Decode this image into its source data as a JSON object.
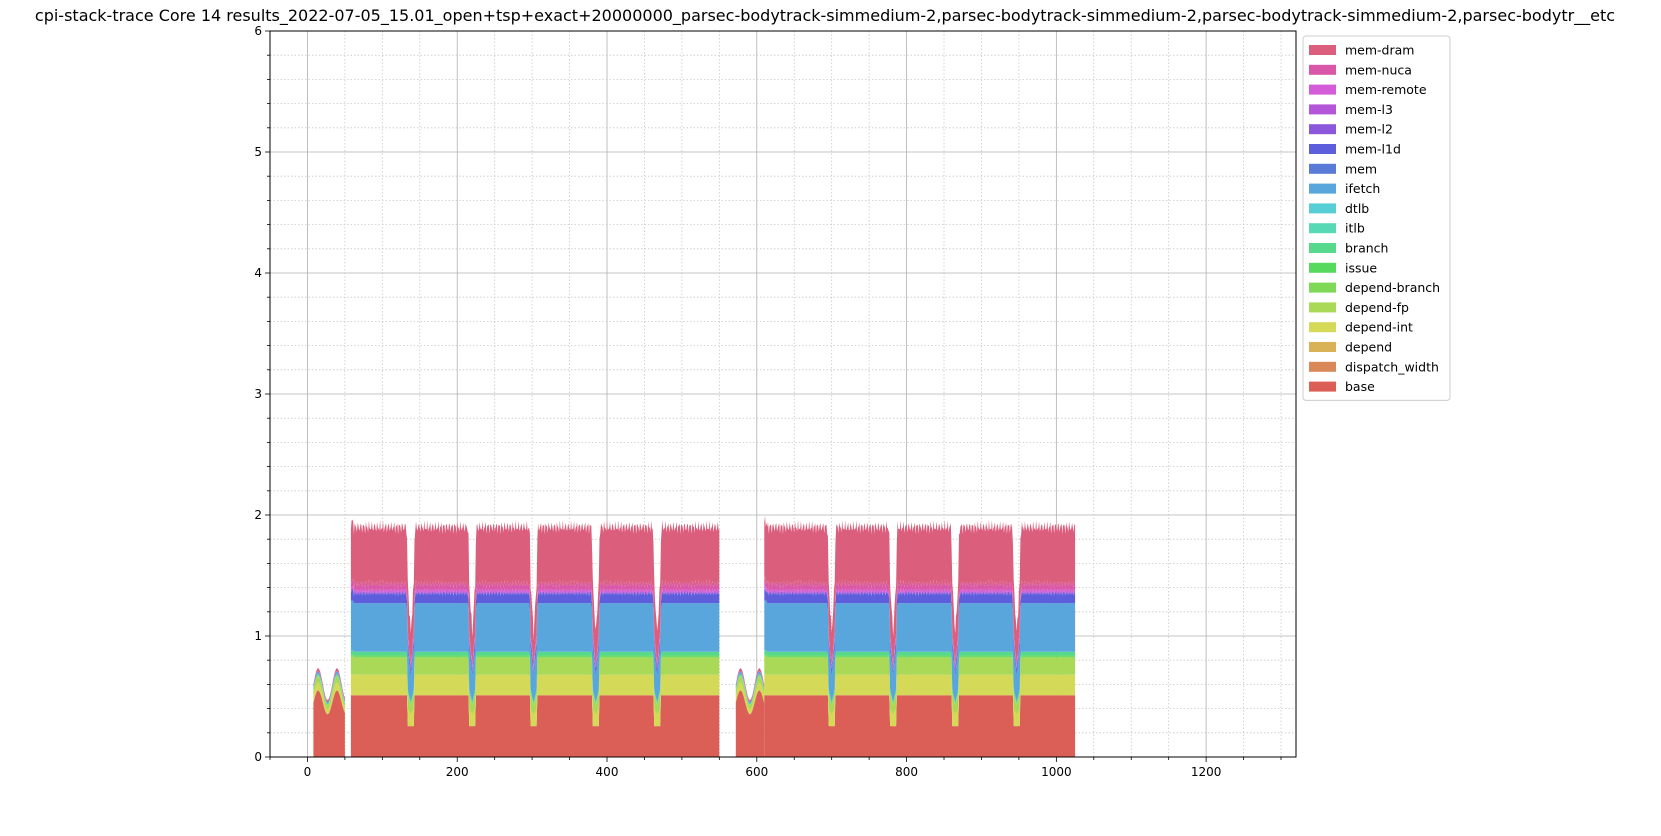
{
  "chart_data": {
    "type": "area",
    "title": "cpi-stack-trace Core 14 results_2022-07-05_15.01_open+tsp+exact+20000000_parsec-bodytrack-simmedium-2,parsec-bodytrack-simmedium-2,parsec-bodytrack-simmedium-2,parsec-bodytr__etc",
    "xlabel": "",
    "ylabel": "",
    "xlim": [
      -50,
      1320
    ],
    "ylim": [
      0,
      6
    ],
    "x_ticks": [
      0,
      200,
      400,
      600,
      800,
      1000,
      1200
    ],
    "y_ticks": [
      0,
      1,
      2,
      3,
      4,
      5,
      6
    ],
    "grid": true,
    "minor_grid": true,
    "legend_position": "upper-right-outside",
    "segments": [
      {
        "start": 8,
        "end": 50,
        "kind": "startup"
      },
      {
        "start": 58,
        "end": 550,
        "kind": "steady"
      },
      {
        "start": 572,
        "end": 610,
        "kind": "startup"
      },
      {
        "start": 610,
        "end": 1025,
        "kind": "steady"
      }
    ],
    "dips": [
      138,
      220,
      302,
      385,
      467,
      700,
      782,
      865,
      947
    ],
    "series": [
      {
        "name": "mem-dram",
        "color": "#db5f7c",
        "steady": 0.47
      },
      {
        "name": "mem-nuca",
        "color": "#d957a8",
        "steady": 0.05
      },
      {
        "name": "mem-remote",
        "color": "#d55cd8",
        "steady": 0.02
      },
      {
        "name": "mem-l3",
        "color": "#b356d8",
        "steady": 0.0
      },
      {
        "name": "mem-l2",
        "color": "#8c58db",
        "steady": 0.01
      },
      {
        "name": "mem-l1d",
        "color": "#5d5edb",
        "steady": 0.08
      },
      {
        "name": "mem",
        "color": "#5a7ad8",
        "steady": 0.0
      },
      {
        "name": "ifetch",
        "color": "#58a6db",
        "steady": 0.4
      },
      {
        "name": "dtlb",
        "color": "#57ced6",
        "steady": 0.0
      },
      {
        "name": "itlb",
        "color": "#57d9b6",
        "steady": 0.0
      },
      {
        "name": "branch",
        "color": "#57d98b",
        "steady": 0.03
      },
      {
        "name": "issue",
        "color": "#57d95e",
        "steady": 0.01
      },
      {
        "name": "depend-branch",
        "color": "#7fd957",
        "steady": 0.01
      },
      {
        "name": "depend-fp",
        "color": "#a9d957",
        "steady": 0.14
      },
      {
        "name": "depend-int",
        "color": "#d4d957",
        "steady": 0.17
      },
      {
        "name": "depend",
        "color": "#d9b257",
        "steady": 0.0
      },
      {
        "name": "dispatch_width",
        "color": "#d98857",
        "steady": 0.0
      },
      {
        "name": "base",
        "color": "#db5f57",
        "steady": 0.51
      }
    ]
  }
}
